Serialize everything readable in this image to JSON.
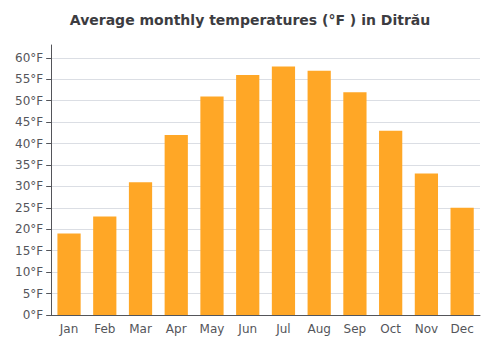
{
  "chart_data": {
    "type": "bar",
    "title": "Average monthly temperatures (°F ) in Ditrău",
    "categories": [
      "Jan",
      "Feb",
      "Mar",
      "Apr",
      "May",
      "Jun",
      "Jul",
      "Aug",
      "Sep",
      "Oct",
      "Nov",
      "Dec"
    ],
    "values": [
      19,
      23,
      31,
      42,
      51,
      56,
      58,
      57,
      52,
      43,
      33,
      25
    ],
    "color": "#FFA726",
    "ylim": [
      0,
      63
    ],
    "yticks": [
      {
        "value": 0,
        "label": "0°F"
      },
      {
        "value": 5,
        "label": "5°F"
      },
      {
        "value": 10,
        "label": "10°F"
      },
      {
        "value": 15,
        "label": "15°F"
      },
      {
        "value": 20,
        "label": "20°F"
      },
      {
        "value": 25,
        "label": "25°F"
      },
      {
        "value": 30,
        "label": "30°F"
      },
      {
        "value": 35,
        "label": "35°F"
      },
      {
        "value": 40,
        "label": "40°F"
      },
      {
        "value": 45,
        "label": "45°F"
      },
      {
        "value": 50,
        "label": "50°F"
      },
      {
        "value": 55,
        "label": "55°F"
      },
      {
        "value": 60,
        "label": "60°F"
      }
    ],
    "grid": true
  }
}
